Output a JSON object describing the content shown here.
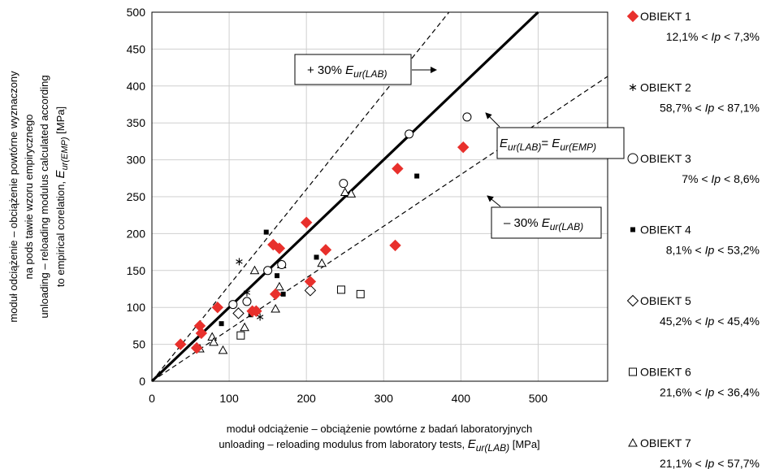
{
  "chart_data": {
    "type": "scatter",
    "xlabel_lines": [
      "moduł odciążenie – obciążenie powtórne z badań laboratoryjnych",
      "unloading – reloading modulus from laboratory tests, "
    ],
    "xlabel_symbol": "E",
    "xlabel_sub": "ur(LAB)",
    "xlabel_unit": " [MPa]",
    "ylabel_lines": [
      "moduł odciążenie  – obciążenie powtórne wyznaczony",
      "na pods tawie wzoru empirycznego",
      "unloading – reloading modulus calculated according",
      "to empirical corelation, "
    ],
    "ylabel_symbol": "E",
    "ylabel_sub": "ur(EMP)",
    "ylabel_unit": "  [MPa]",
    "xlim": [
      0,
      590
    ],
    "ylim": [
      0,
      500
    ],
    "x_ticks": [
      "0",
      "100",
      "200",
      "300",
      "400",
      "500"
    ],
    "x_tick_values": [
      0,
      100,
      200,
      300,
      400,
      500
    ],
    "y_ticks": [
      "0",
      "50",
      "100",
      "150",
      "200",
      "250",
      "300",
      "350",
      "400",
      "450",
      "500"
    ],
    "y_tick_values": [
      0,
      50,
      100,
      150,
      200,
      250,
      300,
      350,
      400,
      450,
      500
    ],
    "grid": "major",
    "reference_lines": [
      {
        "slope": 1.0,
        "style": "solid",
        "color": "#000000"
      },
      {
        "slope": 1.3,
        "style": "dashed",
        "color": "#000000"
      },
      {
        "slope": 0.7,
        "style": "dashed",
        "color": "#000000"
      }
    ],
    "annotations": [
      {
        "prefix": "+ 30% ",
        "symbol": "E",
        "sub": "ur(LAB)",
        "mid": "",
        "symbol2": "",
        "sub2": ""
      },
      {
        "prefix": "",
        "symbol": "E",
        "sub": "ur(LAB)",
        "mid": "= ",
        "symbol2": "E",
        "sub2": "ur(EMP)"
      },
      {
        "prefix": "– 30% ",
        "symbol": "E",
        "sub": "ur(LAB)",
        "mid": "",
        "symbol2": "",
        "sub2": ""
      }
    ],
    "legend_position": "right",
    "series": [
      {
        "name": "OBIEKT 1",
        "range": {
          "a": "12,1%",
          "b": "7,3%"
        },
        "marker": "diamond-filled",
        "color": "#e8302c",
        "points": [
          [
            37,
            50
          ],
          [
            58,
            45
          ],
          [
            62,
            75
          ],
          [
            64,
            65
          ],
          [
            85,
            100
          ],
          [
            130,
            95
          ],
          [
            135,
            95
          ],
          [
            157,
            185
          ],
          [
            160,
            118
          ],
          [
            165,
            180
          ],
          [
            200,
            215
          ],
          [
            205,
            135
          ],
          [
            225,
            178
          ],
          [
            315,
            184
          ],
          [
            318,
            288
          ],
          [
            403,
            317
          ]
        ]
      },
      {
        "name": "OBIEKT 2",
        "range": {
          "a": "58,7%",
          "b": "87,1%"
        },
        "marker": "asterisk",
        "color": "#000000",
        "points": [
          [
            113,
            162
          ],
          [
            123,
            120
          ],
          [
            140,
            87
          ]
        ]
      },
      {
        "name": "OBIEKT 3",
        "range": {
          "a": "7%",
          "b": "8,6%"
        },
        "marker": "circle-open",
        "color": "#000000",
        "points": [
          [
            105,
            104
          ],
          [
            123,
            108
          ],
          [
            150,
            150
          ],
          [
            168,
            158
          ],
          [
            248,
            268
          ],
          [
            333,
            335
          ],
          [
            408,
            358
          ]
        ]
      },
      {
        "name": "OBIEKT 4",
        "range": {
          "a": "8,1%",
          "b": "53,2%"
        },
        "marker": "square-filled",
        "color": "#000000",
        "points": [
          [
            90,
            78
          ],
          [
            128,
            90
          ],
          [
            148,
            202
          ],
          [
            162,
            143
          ],
          [
            170,
            118
          ],
          [
            213,
            168
          ],
          [
            343,
            278
          ]
        ]
      },
      {
        "name": "OBIEKT 5",
        "range": {
          "a": "45,2%",
          "b": "45,4%"
        },
        "marker": "diamond-open",
        "color": "#000000",
        "points": [
          [
            112,
            92
          ],
          [
            205,
            123
          ]
        ]
      },
      {
        "name": "OBIEKT 6",
        "range": {
          "a": "21,6%",
          "b": "36,4%"
        },
        "marker": "square-open",
        "color": "#000000",
        "points": [
          [
            115,
            62
          ],
          [
            245,
            124
          ],
          [
            270,
            118
          ]
        ]
      },
      {
        "name": "OBIEKT 7",
        "range": {
          "a": "21,1%",
          "b": "57,7%"
        },
        "marker": "triangle-open",
        "color": "#000000",
        "points": [
          [
            62,
            44
          ],
          [
            78,
            60
          ],
          [
            80,
            53
          ],
          [
            92,
            42
          ],
          [
            120,
            73
          ],
          [
            133,
            150
          ],
          [
            160,
            98
          ],
          [
            165,
            128
          ],
          [
            168,
            158
          ],
          [
            220,
            160
          ],
          [
            250,
            256
          ],
          [
            258,
            254
          ]
        ]
      }
    ]
  },
  "legend_range_mid": " < ",
  "legend_range_symbol": "Ip",
  "legend_range_tail": " < "
}
